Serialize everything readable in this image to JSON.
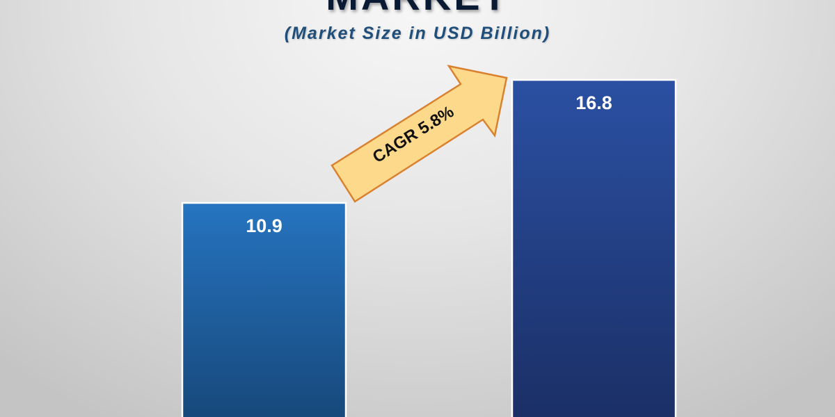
{
  "chart_data": {
    "type": "bar",
    "title": "MARKET",
    "subtitle": "(Market Size in USD Billion)",
    "categories": [
      "",
      ""
    ],
    "values": [
      10.9,
      16.8
    ],
    "data_labels": [
      "10.9",
      "16.8"
    ],
    "annotation": "CAGR 5.8%",
    "colors": {
      "bar1_top": "#2674c0",
      "bar1_bottom": "#164677",
      "bar2_top": "#2b50a2",
      "bar2_bottom": "#1a2e64",
      "arrow_fill": "#fdd98c",
      "arrow_stroke": "#d9812e"
    },
    "grid": false
  }
}
